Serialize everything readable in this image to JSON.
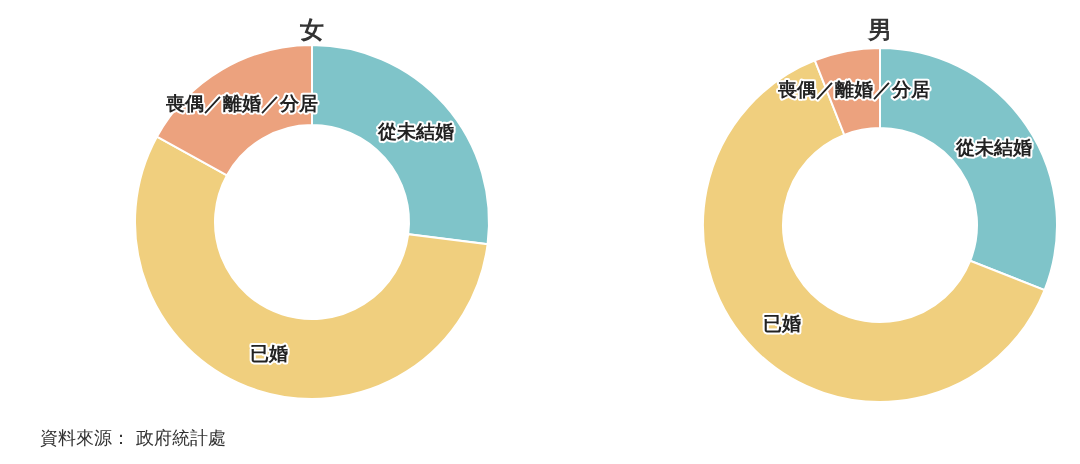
{
  "chart_data": [
    {
      "type": "donut",
      "title": "女",
      "categories": [
        "從未結婚",
        "已婚",
        "喪偶／離婚／分居"
      ],
      "values": [
        27,
        56,
        17
      ],
      "colors": [
        "#7fc4c9",
        "#f0cf7e",
        "#eca27e"
      ],
      "annotations": [
        "資料來源： 政府統計處"
      ]
    },
    {
      "type": "donut",
      "title": "男",
      "categories": [
        "從未結婚",
        "已婚",
        "喪偶／離婚／分居"
      ],
      "values": [
        31,
        63,
        6
      ],
      "colors": [
        "#7fc4c9",
        "#f0cf7e",
        "#eca27e"
      ]
    }
  ]
}
